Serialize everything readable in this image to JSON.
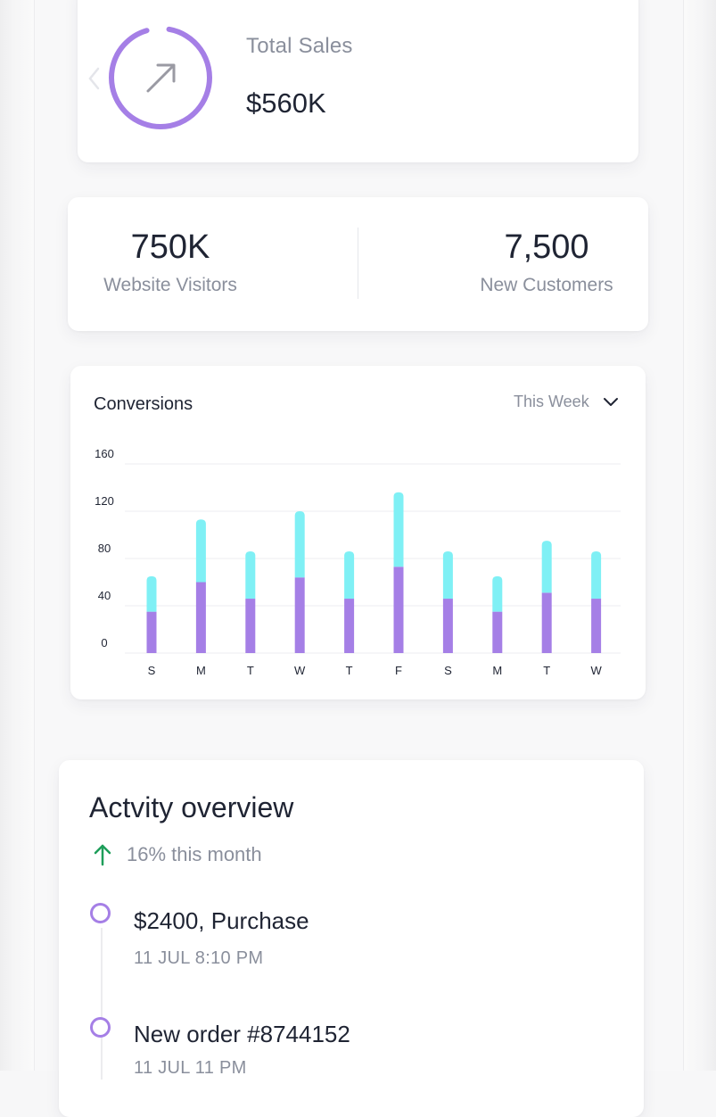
{
  "total_sales": {
    "label": "Total Sales",
    "value": "$560K",
    "icon": "arrow-up-right-icon",
    "ring_color": "#a57fe6"
  },
  "stats": [
    {
      "value": "750K",
      "label": "Website Visitors"
    },
    {
      "value": "7,500",
      "label": "New Customers"
    }
  ],
  "conversions": {
    "title": "Conversions",
    "period": "This Week"
  },
  "chart_data": {
    "type": "bar",
    "stacked": true,
    "categories": [
      "S",
      "M",
      "T",
      "W",
      "T",
      "F",
      "S",
      "M",
      "T",
      "W"
    ],
    "series": [
      {
        "color": "#a57fe6",
        "values": [
          35,
          60,
          46,
          64,
          46,
          73,
          46,
          35,
          51,
          46
        ]
      },
      {
        "color": "#7ff0f5",
        "values": [
          30,
          53,
          40,
          56,
          40,
          63,
          40,
          30,
          44,
          40
        ]
      }
    ],
    "yticks": [
      0,
      40,
      80,
      120,
      160
    ],
    "ylim": [
      0,
      160
    ],
    "grid": true,
    "xlabel": "",
    "ylabel": ""
  },
  "activity": {
    "title": "Actvity overview",
    "trend": "16% this month",
    "trend_color": "#1e9e5a",
    "items": [
      {
        "title": "$2400, Purchase",
        "time": "11 JUL 8:10 PM"
      },
      {
        "title": "New order #8744152",
        "time": "11 JUL 11 PM"
      }
    ]
  }
}
